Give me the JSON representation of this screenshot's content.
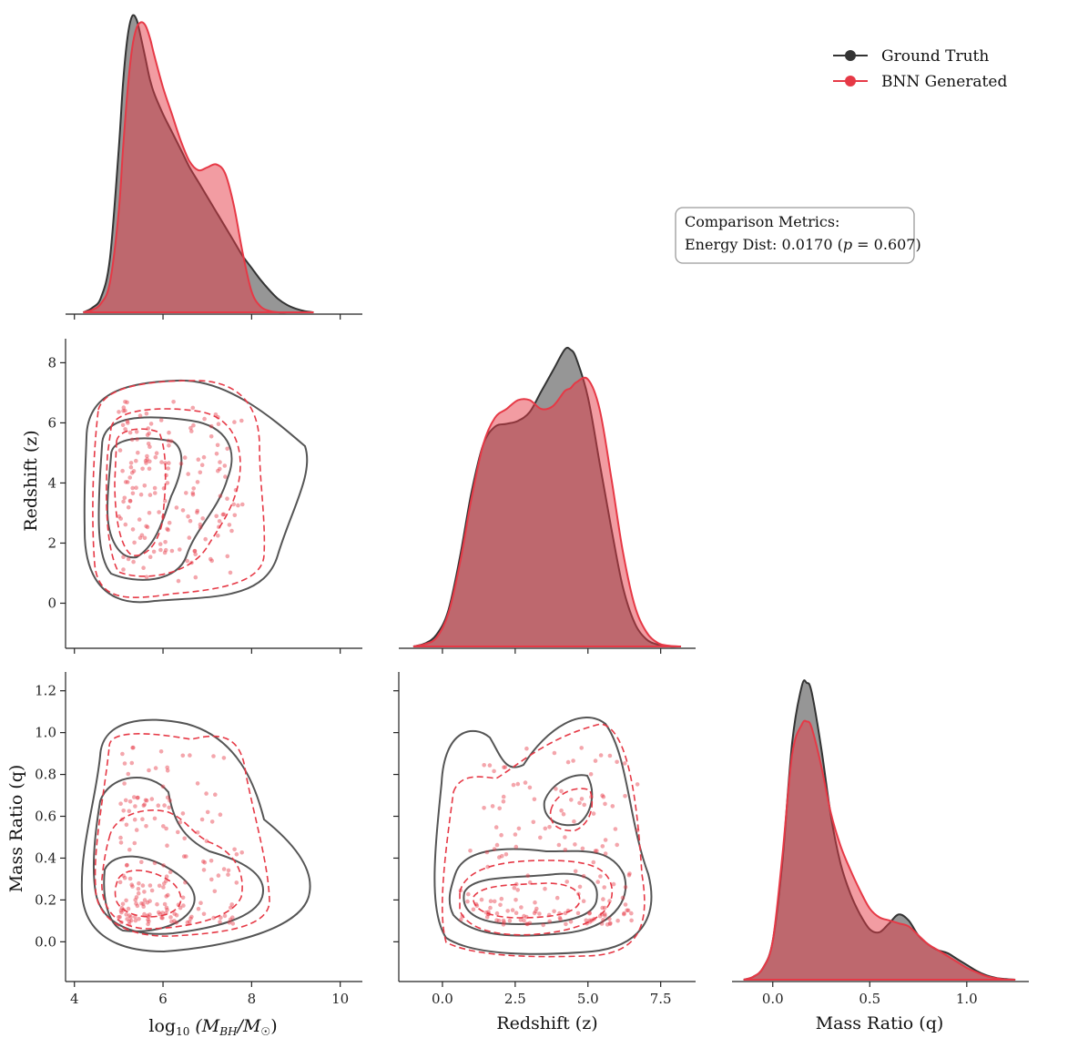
{
  "legend": {
    "position": "top-right",
    "entries": [
      {
        "label": "Ground Truth",
        "color": "#333333"
      },
      {
        "label": "BNN Generated",
        "color": "#e63946"
      }
    ]
  },
  "metrics": {
    "title": "Comparison Metrics:",
    "energy_prefix": "Energy Dist: 0.0170 (",
    "p_symbol": "p",
    "energy_suffix": " = 0.607)",
    "energy_distance": 0.017,
    "p_value": 0.607
  },
  "axis_labels": {
    "mbh_prefix": "log",
    "mbh_sub": "10",
    "mbh_main": " (M",
    "mbh_bh": "BH",
    "mbh_slash": "/M",
    "mbh_sun": "☉",
    "mbh_close": ")",
    "redshift": "Redshift (z)",
    "mass_ratio": "Mass Ratio (q)"
  },
  "chart_data": [
    {
      "type": "area",
      "panel": "diag-mbh",
      "variable": "log10(M_BH/M_sun)",
      "xlim": [
        3.8,
        10.5
      ],
      "xticks": [
        4,
        6,
        8,
        10
      ],
      "x": [
        4.2,
        4.4,
        4.6,
        4.8,
        5.0,
        5.1,
        5.2,
        5.3,
        5.4,
        5.5,
        5.6,
        5.7,
        5.8,
        6.0,
        6.2,
        6.4,
        6.6,
        6.8,
        7.0,
        7.2,
        7.4,
        7.6,
        7.8,
        8.0,
        8.2,
        8.4,
        8.6,
        8.8,
        9.0,
        9.2,
        9.4
      ],
      "series": [
        {
          "name": "Ground Truth",
          "color": "#333333",
          "values": [
            0.0,
            0.015,
            0.05,
            0.18,
            0.55,
            0.78,
            0.93,
            1.0,
            0.99,
            0.93,
            0.86,
            0.79,
            0.74,
            0.67,
            0.61,
            0.55,
            0.49,
            0.44,
            0.39,
            0.34,
            0.29,
            0.24,
            0.19,
            0.15,
            0.11,
            0.075,
            0.045,
            0.025,
            0.012,
            0.004,
            0.0
          ]
        },
        {
          "name": "BNN Generated",
          "color": "#e63946",
          "values": [
            0.0,
            0.008,
            0.03,
            0.1,
            0.34,
            0.56,
            0.75,
            0.89,
            0.96,
            0.98,
            0.97,
            0.93,
            0.87,
            0.76,
            0.67,
            0.58,
            0.51,
            0.48,
            0.49,
            0.5,
            0.47,
            0.36,
            0.2,
            0.07,
            0.02,
            0.005,
            0.0,
            0.0,
            0.0,
            0.0,
            0.0
          ]
        }
      ]
    },
    {
      "type": "scatter",
      "panel": "mbh-vs-redshift",
      "xlim": [
        3.8,
        10.5
      ],
      "ylim": [
        -1.5,
        8.8
      ],
      "xticks": [
        4,
        6,
        8,
        10
      ],
      "yticks": [
        0,
        2,
        4,
        6,
        8
      ],
      "seed": 11,
      "n_points": 170
    },
    {
      "type": "area",
      "panel": "diag-redshift",
      "variable": "Redshift (z)",
      "xlim": [
        -1.5,
        8.7
      ],
      "x": [
        -1.0,
        -0.6,
        -0.2,
        0.2,
        0.6,
        1.0,
        1.4,
        1.8,
        2.2,
        2.6,
        3.0,
        3.4,
        3.8,
        4.2,
        4.4,
        4.6,
        5.0,
        5.4,
        5.8,
        6.2,
        6.6,
        7.0,
        7.4,
        7.8,
        8.2
      ],
      "series": [
        {
          "name": "Ground Truth",
          "color": "#333333",
          "values": [
            0.0,
            0.01,
            0.04,
            0.12,
            0.3,
            0.52,
            0.68,
            0.74,
            0.75,
            0.76,
            0.79,
            0.86,
            0.93,
            1.0,
            1.0,
            0.97,
            0.84,
            0.62,
            0.4,
            0.2,
            0.08,
            0.025,
            0.006,
            0.0,
            0.0
          ]
        },
        {
          "name": "BNN Generated",
          "color": "#e63946",
          "values": [
            0.0,
            0.008,
            0.03,
            0.11,
            0.28,
            0.5,
            0.68,
            0.77,
            0.8,
            0.83,
            0.83,
            0.8,
            0.81,
            0.86,
            0.87,
            0.89,
            0.9,
            0.8,
            0.57,
            0.32,
            0.14,
            0.05,
            0.012,
            0.002,
            0.0
          ]
        }
      ]
    },
    {
      "type": "scatter",
      "panel": "mbh-vs-massratio",
      "xlim": [
        3.8,
        10.5
      ],
      "ylim": [
        -0.19,
        1.29
      ],
      "xticks": [
        4,
        6,
        8,
        10
      ],
      "yticks": [
        0.0,
        0.2,
        0.4,
        0.6,
        0.8,
        1.0,
        1.2
      ],
      "seed": 23,
      "n_points": 180
    },
    {
      "type": "scatter",
      "panel": "redshift-vs-massratio",
      "xlim": [
        -1.5,
        8.7
      ],
      "ylim": [
        -0.19,
        1.29
      ],
      "xticks": [
        0.0,
        2.5,
        5.0,
        7.5
      ],
      "seed": 37,
      "n_points": 180
    },
    {
      "type": "area",
      "panel": "diag-massratio",
      "variable": "Mass Ratio (q)",
      "xlim": [
        -0.21,
        1.32
      ],
      "xticks": [
        0.0,
        0.5,
        1.0
      ],
      "x": [
        -0.15,
        -0.1,
        -0.05,
        0.0,
        0.05,
        0.1,
        0.15,
        0.175,
        0.2,
        0.25,
        0.3,
        0.35,
        0.4,
        0.45,
        0.5,
        0.55,
        0.6,
        0.65,
        0.7,
        0.75,
        0.8,
        0.85,
        0.9,
        0.95,
        1.0,
        1.05,
        1.1,
        1.15,
        1.2,
        1.25
      ],
      "series": [
        {
          "name": "Ground Truth",
          "color": "#333333",
          "values": [
            0.0,
            0.01,
            0.04,
            0.13,
            0.4,
            0.8,
            0.99,
            1.0,
            0.97,
            0.78,
            0.55,
            0.39,
            0.29,
            0.22,
            0.17,
            0.16,
            0.19,
            0.22,
            0.2,
            0.15,
            0.12,
            0.1,
            0.09,
            0.07,
            0.05,
            0.03,
            0.015,
            0.006,
            0.002,
            0.0
          ]
        },
        {
          "name": "BNN Generated",
          "color": "#e63946",
          "values": [
            0.0,
            0.01,
            0.04,
            0.13,
            0.42,
            0.76,
            0.86,
            0.87,
            0.85,
            0.72,
            0.56,
            0.45,
            0.37,
            0.3,
            0.24,
            0.21,
            0.2,
            0.19,
            0.18,
            0.15,
            0.12,
            0.1,
            0.08,
            0.06,
            0.04,
            0.025,
            0.012,
            0.005,
            0.001,
            0.0
          ]
        }
      ]
    }
  ]
}
